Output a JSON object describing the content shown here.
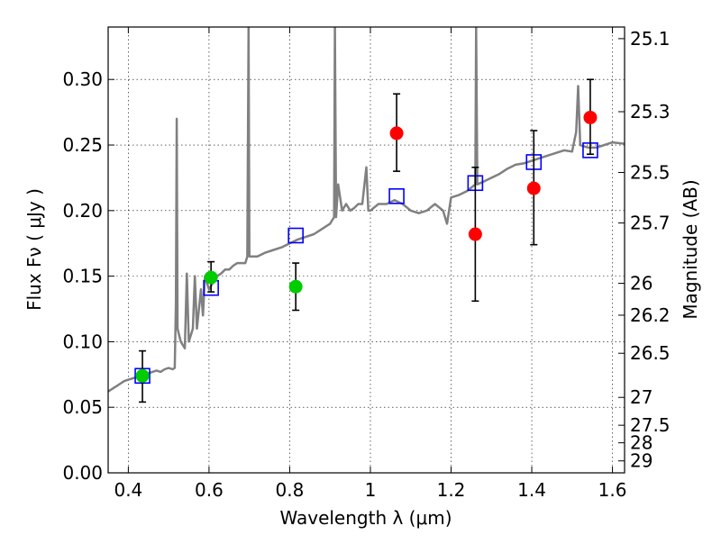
{
  "chart_data": {
    "type": "scatter",
    "xlabel": "Wavelength  λ (μm)",
    "ylabel": "Flux  Fν  ( μJy )",
    "y2label": "Magnitude (AB)",
    "xlim": [
      0.35,
      1.63
    ],
    "ylim": [
      0.0,
      0.34
    ],
    "grid": true,
    "x_ticks": [
      {
        "value": 0.4,
        "label": "0.4"
      },
      {
        "value": 0.6,
        "label": "0.6"
      },
      {
        "value": 0.8,
        "label": "0.8"
      },
      {
        "value": 1.0,
        "label": "1"
      },
      {
        "value": 1.2,
        "label": "1.2"
      },
      {
        "value": 1.4,
        "label": "1.4"
      },
      {
        "value": 1.6,
        "label": "1.6"
      }
    ],
    "y_ticks": [
      {
        "value": 0.0,
        "label": "0.00"
      },
      {
        "value": 0.05,
        "label": "0.05"
      },
      {
        "value": 0.1,
        "label": "0.10"
      },
      {
        "value": 0.15,
        "label": "0.15"
      },
      {
        "value": 0.2,
        "label": "0.20"
      },
      {
        "value": 0.25,
        "label": "0.25"
      },
      {
        "value": 0.3,
        "label": "0.30"
      }
    ],
    "y2_ticks": [
      {
        "mag": 25.1,
        "label": "25.1"
      },
      {
        "mag": 25.3,
        "label": "25.3"
      },
      {
        "mag": 25.5,
        "label": "25.5"
      },
      {
        "mag": 25.7,
        "label": "25.7"
      },
      {
        "mag": 26.0,
        "label": "26"
      },
      {
        "mag": 26.2,
        "label": "26.2"
      },
      {
        "mag": 26.5,
        "label": "26.5"
      },
      {
        "mag": 27.0,
        "label": "27"
      },
      {
        "mag": 27.5,
        "label": "27.5"
      },
      {
        "mag": 28.0,
        "label": "28"
      },
      {
        "mag": 29.0,
        "label": "29"
      }
    ],
    "series": [
      {
        "kind": "line",
        "color": "#808080",
        "points": [
          [
            0.35,
            0.062
          ],
          [
            0.36,
            0.064
          ],
          [
            0.37,
            0.066
          ],
          [
            0.38,
            0.068
          ],
          [
            0.39,
            0.07
          ],
          [
            0.4,
            0.071
          ],
          [
            0.41,
            0.072
          ],
          [
            0.42,
            0.073
          ],
          [
            0.43,
            0.074
          ],
          [
            0.44,
            0.075
          ],
          [
            0.45,
            0.076
          ],
          [
            0.46,
            0.077
          ],
          [
            0.47,
            0.078
          ],
          [
            0.48,
            0.077
          ],
          [
            0.49,
            0.079
          ],
          [
            0.5,
            0.08
          ],
          [
            0.51,
            0.079
          ],
          [
            0.515,
            0.08
          ],
          [
            0.518,
            0.13
          ],
          [
            0.52,
            0.27
          ],
          [
            0.522,
            0.11
          ],
          [
            0.53,
            0.1
          ],
          [
            0.54,
            0.095
          ],
          [
            0.545,
            0.152
          ],
          [
            0.55,
            0.1
          ],
          [
            0.56,
            0.11
          ],
          [
            0.565,
            0.15
          ],
          [
            0.57,
            0.11
          ],
          [
            0.58,
            0.14
          ],
          [
            0.585,
            0.12
          ],
          [
            0.59,
            0.15
          ],
          [
            0.6,
            0.14
          ],
          [
            0.61,
            0.145
          ],
          [
            0.62,
            0.15
          ],
          [
            0.63,
            0.152
          ],
          [
            0.64,
            0.155
          ],
          [
            0.65,
            0.155
          ],
          [
            0.66,
            0.158
          ],
          [
            0.67,
            0.16
          ],
          [
            0.68,
            0.16
          ],
          [
            0.69,
            0.16
          ],
          [
            0.695,
            0.165
          ],
          [
            0.698,
            0.34
          ],
          [
            0.7,
            0.165
          ],
          [
            0.72,
            0.165
          ],
          [
            0.74,
            0.168
          ],
          [
            0.76,
            0.17
          ],
          [
            0.78,
            0.172
          ],
          [
            0.8,
            0.175
          ],
          [
            0.82,
            0.178
          ],
          [
            0.84,
            0.18
          ],
          [
            0.86,
            0.182
          ],
          [
            0.88,
            0.186
          ],
          [
            0.9,
            0.19
          ],
          [
            0.91,
            0.195
          ],
          [
            0.912,
            0.34
          ],
          [
            0.915,
            0.195
          ],
          [
            0.92,
            0.22
          ],
          [
            0.93,
            0.2
          ],
          [
            0.94,
            0.205
          ],
          [
            0.95,
            0.2
          ],
          [
            0.96,
            0.202
          ],
          [
            0.97,
            0.205
          ],
          [
            0.98,
            0.205
          ],
          [
            0.99,
            0.233
          ],
          [
            0.995,
            0.2
          ],
          [
            1.0,
            0.2
          ],
          [
            1.02,
            0.205
          ],
          [
            1.04,
            0.205
          ],
          [
            1.06,
            0.208
          ],
          [
            1.08,
            0.205
          ],
          [
            1.1,
            0.2
          ],
          [
            1.12,
            0.198
          ],
          [
            1.14,
            0.2
          ],
          [
            1.16,
            0.205
          ],
          [
            1.18,
            0.2
          ],
          [
            1.19,
            0.19
          ],
          [
            1.2,
            0.21
          ],
          [
            1.22,
            0.212
          ],
          [
            1.24,
            0.215
          ],
          [
            1.26,
            0.22
          ],
          [
            1.262,
            0.34
          ],
          [
            1.265,
            0.22
          ],
          [
            1.28,
            0.222
          ],
          [
            1.3,
            0.225
          ],
          [
            1.32,
            0.228
          ],
          [
            1.34,
            0.232
          ],
          [
            1.36,
            0.235
          ],
          [
            1.38,
            0.236
          ],
          [
            1.4,
            0.238
          ],
          [
            1.42,
            0.24
          ],
          [
            1.44,
            0.242
          ],
          [
            1.46,
            0.244
          ],
          [
            1.48,
            0.246
          ],
          [
            1.5,
            0.245
          ],
          [
            1.51,
            0.26
          ],
          [
            1.515,
            0.295
          ],
          [
            1.52,
            0.25
          ],
          [
            1.54,
            0.248
          ],
          [
            1.56,
            0.248
          ],
          [
            1.58,
            0.25
          ],
          [
            1.6,
            0.252
          ],
          [
            1.63,
            0.251
          ]
        ]
      },
      {
        "kind": "open-square",
        "color": "#0000ff",
        "points": [
          [
            0.435,
            0.074
          ],
          [
            0.605,
            0.141
          ],
          [
            0.815,
            0.181
          ],
          [
            1.065,
            0.211
          ],
          [
            1.26,
            0.221
          ],
          [
            1.405,
            0.237
          ],
          [
            1.545,
            0.246
          ]
        ]
      },
      {
        "kind": "circle-errorbar",
        "color": "#00cc00",
        "points": [
          {
            "x": 0.435,
            "y": 0.074,
            "ylo": 0.054,
            "yhi": 0.093
          },
          {
            "x": 0.605,
            "y": 0.149,
            "ylo": 0.138,
            "yhi": 0.161
          },
          {
            "x": 0.815,
            "y": 0.142,
            "ylo": 0.124,
            "yhi": 0.16
          }
        ]
      },
      {
        "kind": "circle-errorbar",
        "color": "#ff0000",
        "points": [
          {
            "x": 1.065,
            "y": 0.259,
            "ylo": 0.23,
            "yhi": 0.289
          },
          {
            "x": 1.26,
            "y": 0.182,
            "ylo": 0.131,
            "yhi": 0.233
          },
          {
            "x": 1.405,
            "y": 0.217,
            "ylo": 0.174,
            "yhi": 0.261
          },
          {
            "x": 1.545,
            "y": 0.271,
            "ylo": 0.243,
            "yhi": 0.3
          }
        ]
      }
    ]
  }
}
